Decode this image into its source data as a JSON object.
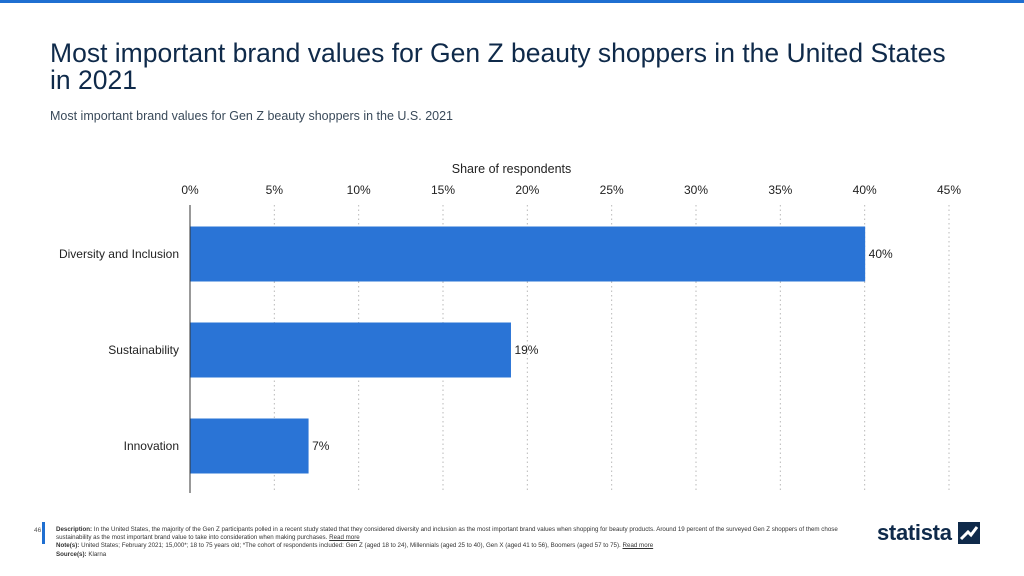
{
  "page": {
    "title": "Most important brand values for Gen Z beauty shoppers in the United States in 2021",
    "subtitle": "Most important brand values for Gen Z beauty shoppers in the U.S. 2021",
    "page_number": "46",
    "description_label": "Description:",
    "description": "In the United States, the majority of the Gen Z participants polled in a recent study stated that they considered diversity and inclusion as the most important brand values when shopping for beauty products. Around 19 percent of the surveyed Gen Z shoppers of them chose sustainability as the most important brand value to take into consideration when making purchases.",
    "read_more": "Read more",
    "notes_label": "Note(s):",
    "notes": "United States; February 2021; 15,000*; 18 to 75 years old; *The cohort of respondents included: Gen Z (aged 18 to 24), Millennials (aged 25 to 40), Gen X (aged 41 to 56), Boomers (aged 57 to 75).",
    "source_label": "Source(s):",
    "source": "Klarna",
    "logo_text": "statista"
  },
  "colors": {
    "bar": "#2a74d6",
    "accent": "#1f6fd1",
    "title": "#0f2a4a",
    "grid": "#b9b9b9"
  },
  "chart_data": {
    "type": "bar",
    "orientation": "horizontal",
    "title": "",
    "xlabel": "Share of respondents",
    "ylabel": "",
    "categories": [
      "Diversity and Inclusion",
      "Sustainability",
      "Innovation"
    ],
    "values": [
      40,
      19,
      7
    ],
    "value_labels": [
      "40%",
      "19%",
      "7%"
    ],
    "xlim": [
      0,
      45
    ],
    "ticks": [
      0,
      5,
      10,
      15,
      20,
      25,
      30,
      35,
      40,
      45
    ],
    "tick_labels": [
      "0%",
      "5%",
      "10%",
      "15%",
      "20%",
      "25%",
      "30%",
      "35%",
      "40%",
      "45%"
    ],
    "axis_position": "top",
    "grid": true
  }
}
